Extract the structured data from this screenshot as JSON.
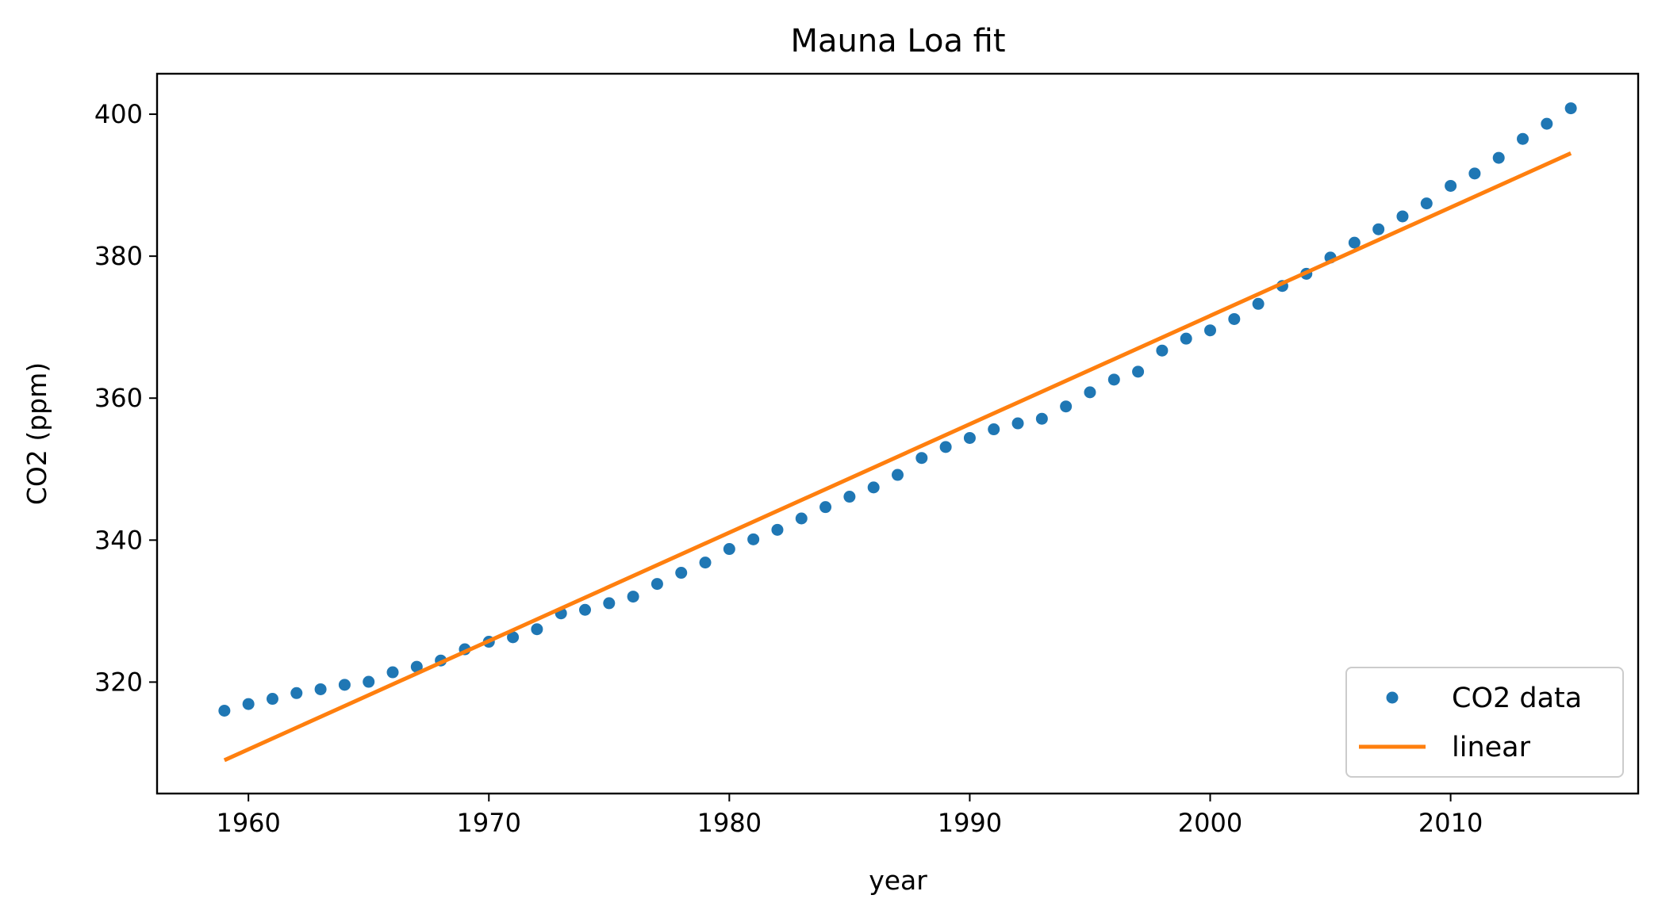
{
  "chart_data": {
    "type": "scatter",
    "title": "Mauna Loa fit",
    "xlabel": "year",
    "ylabel": "CO2 (ppm)",
    "xlim": [
      1956.2,
      2017.8
    ],
    "ylim": [
      304.3,
      405.7
    ],
    "xticks": [
      1960,
      1970,
      1980,
      1990,
      2000,
      2010
    ],
    "yticks": [
      320,
      340,
      360,
      380,
      400
    ],
    "grid": false,
    "legend_position": "lower-right",
    "series": [
      {
        "name": "CO2 data",
        "kind": "points",
        "color": "#1f77b4",
        "x": [
          1959,
          1960,
          1961,
          1962,
          1963,
          1964,
          1965,
          1966,
          1967,
          1968,
          1969,
          1970,
          1971,
          1972,
          1973,
          1974,
          1975,
          1976,
          1977,
          1978,
          1979,
          1980,
          1981,
          1982,
          1983,
          1984,
          1985,
          1986,
          1987,
          1988,
          1989,
          1990,
          1991,
          1992,
          1993,
          1994,
          1995,
          1996,
          1997,
          1998,
          1999,
          2000,
          2001,
          2002,
          2003,
          2004,
          2005,
          2006,
          2007,
          2008,
          2009,
          2010,
          2011,
          2012,
          2013,
          2014,
          2015
        ],
        "y": [
          315.97,
          316.91,
          317.64,
          318.45,
          318.99,
          319.62,
          320.04,
          321.38,
          322.16,
          323.04,
          324.62,
          325.68,
          326.32,
          327.45,
          329.68,
          330.18,
          331.11,
          332.04,
          333.83,
          335.4,
          336.84,
          338.75,
          340.11,
          341.45,
          343.05,
          344.65,
          346.12,
          347.42,
          349.19,
          351.57,
          353.12,
          354.39,
          355.61,
          356.45,
          357.1,
          358.83,
          360.82,
          362.61,
          363.73,
          366.7,
          368.38,
          369.55,
          371.14,
          373.28,
          375.8,
          377.52,
          379.8,
          381.9,
          383.79,
          385.6,
          387.43,
          389.9,
          391.65,
          393.85,
          396.52,
          398.65,
          400.83
        ]
      },
      {
        "name": "linear",
        "kind": "line",
        "color": "#ff7f0e",
        "x": [
          1959,
          2015
        ],
        "y": [
          309.0,
          394.5
        ]
      }
    ]
  }
}
